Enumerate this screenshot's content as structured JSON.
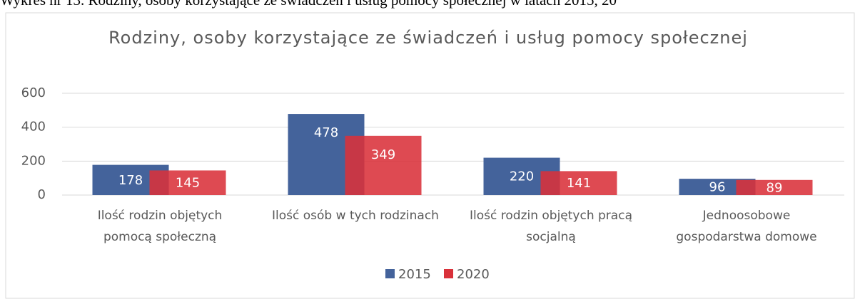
{
  "caption": "Wykres nr 13. Rodziny, osoby korzystające ze świadczeń i usług pomocy społecznej w latach 2015, 20",
  "chart_data": {
    "type": "bar",
    "title": "Rodziny, osoby korzystające ze świadczeń i usług pomocy społecznej",
    "categories": [
      "Ilość rodzin objętych pomocą społeczną",
      "Ilość osób w tych rodzinach",
      "Ilość rodzin objętych pracą socjalną",
      "Jednoosobowe gospodarstwa domowe"
    ],
    "series": [
      {
        "name": "2015",
        "color": "#44639b",
        "values": [
          178,
          478,
          220,
          96
        ]
      },
      {
        "name": "2020",
        "color": "#d9313a",
        "values": [
          145,
          349,
          141,
          89
        ]
      }
    ],
    "ylim": [
      0,
      600
    ],
    "yticks": [
      0,
      200,
      400,
      600
    ],
    "grid": true,
    "legend": "bottom"
  }
}
